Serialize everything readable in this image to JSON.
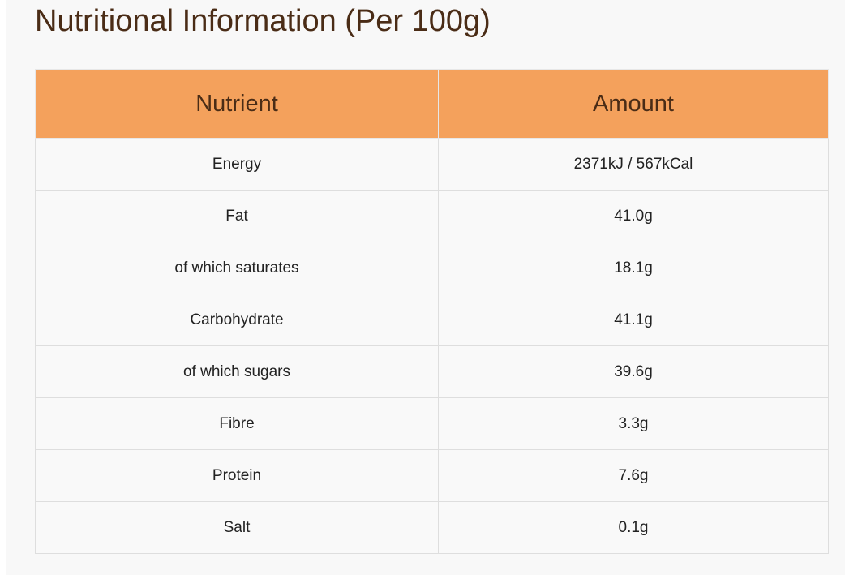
{
  "title": "Nutritional Information (Per 100g)",
  "colors": {
    "header_bg": "#f4a15c",
    "title_text": "#4a2c16",
    "row_bg": "#f9f9f9"
  },
  "table": {
    "headers": [
      "Nutrient",
      "Amount"
    ],
    "rows": [
      {
        "nutrient": "Energy",
        "amount": "2371kJ / 567kCal"
      },
      {
        "nutrient": "Fat",
        "amount": "41.0g"
      },
      {
        "nutrient": "of which saturates",
        "amount": "18.1g"
      },
      {
        "nutrient": "Carbohydrate",
        "amount": "41.1g"
      },
      {
        "nutrient": "of which sugars",
        "amount": "39.6g"
      },
      {
        "nutrient": "Fibre",
        "amount": "3.3g"
      },
      {
        "nutrient": "Protein",
        "amount": "7.6g"
      },
      {
        "nutrient": "Salt",
        "amount": "0.1g"
      }
    ]
  }
}
